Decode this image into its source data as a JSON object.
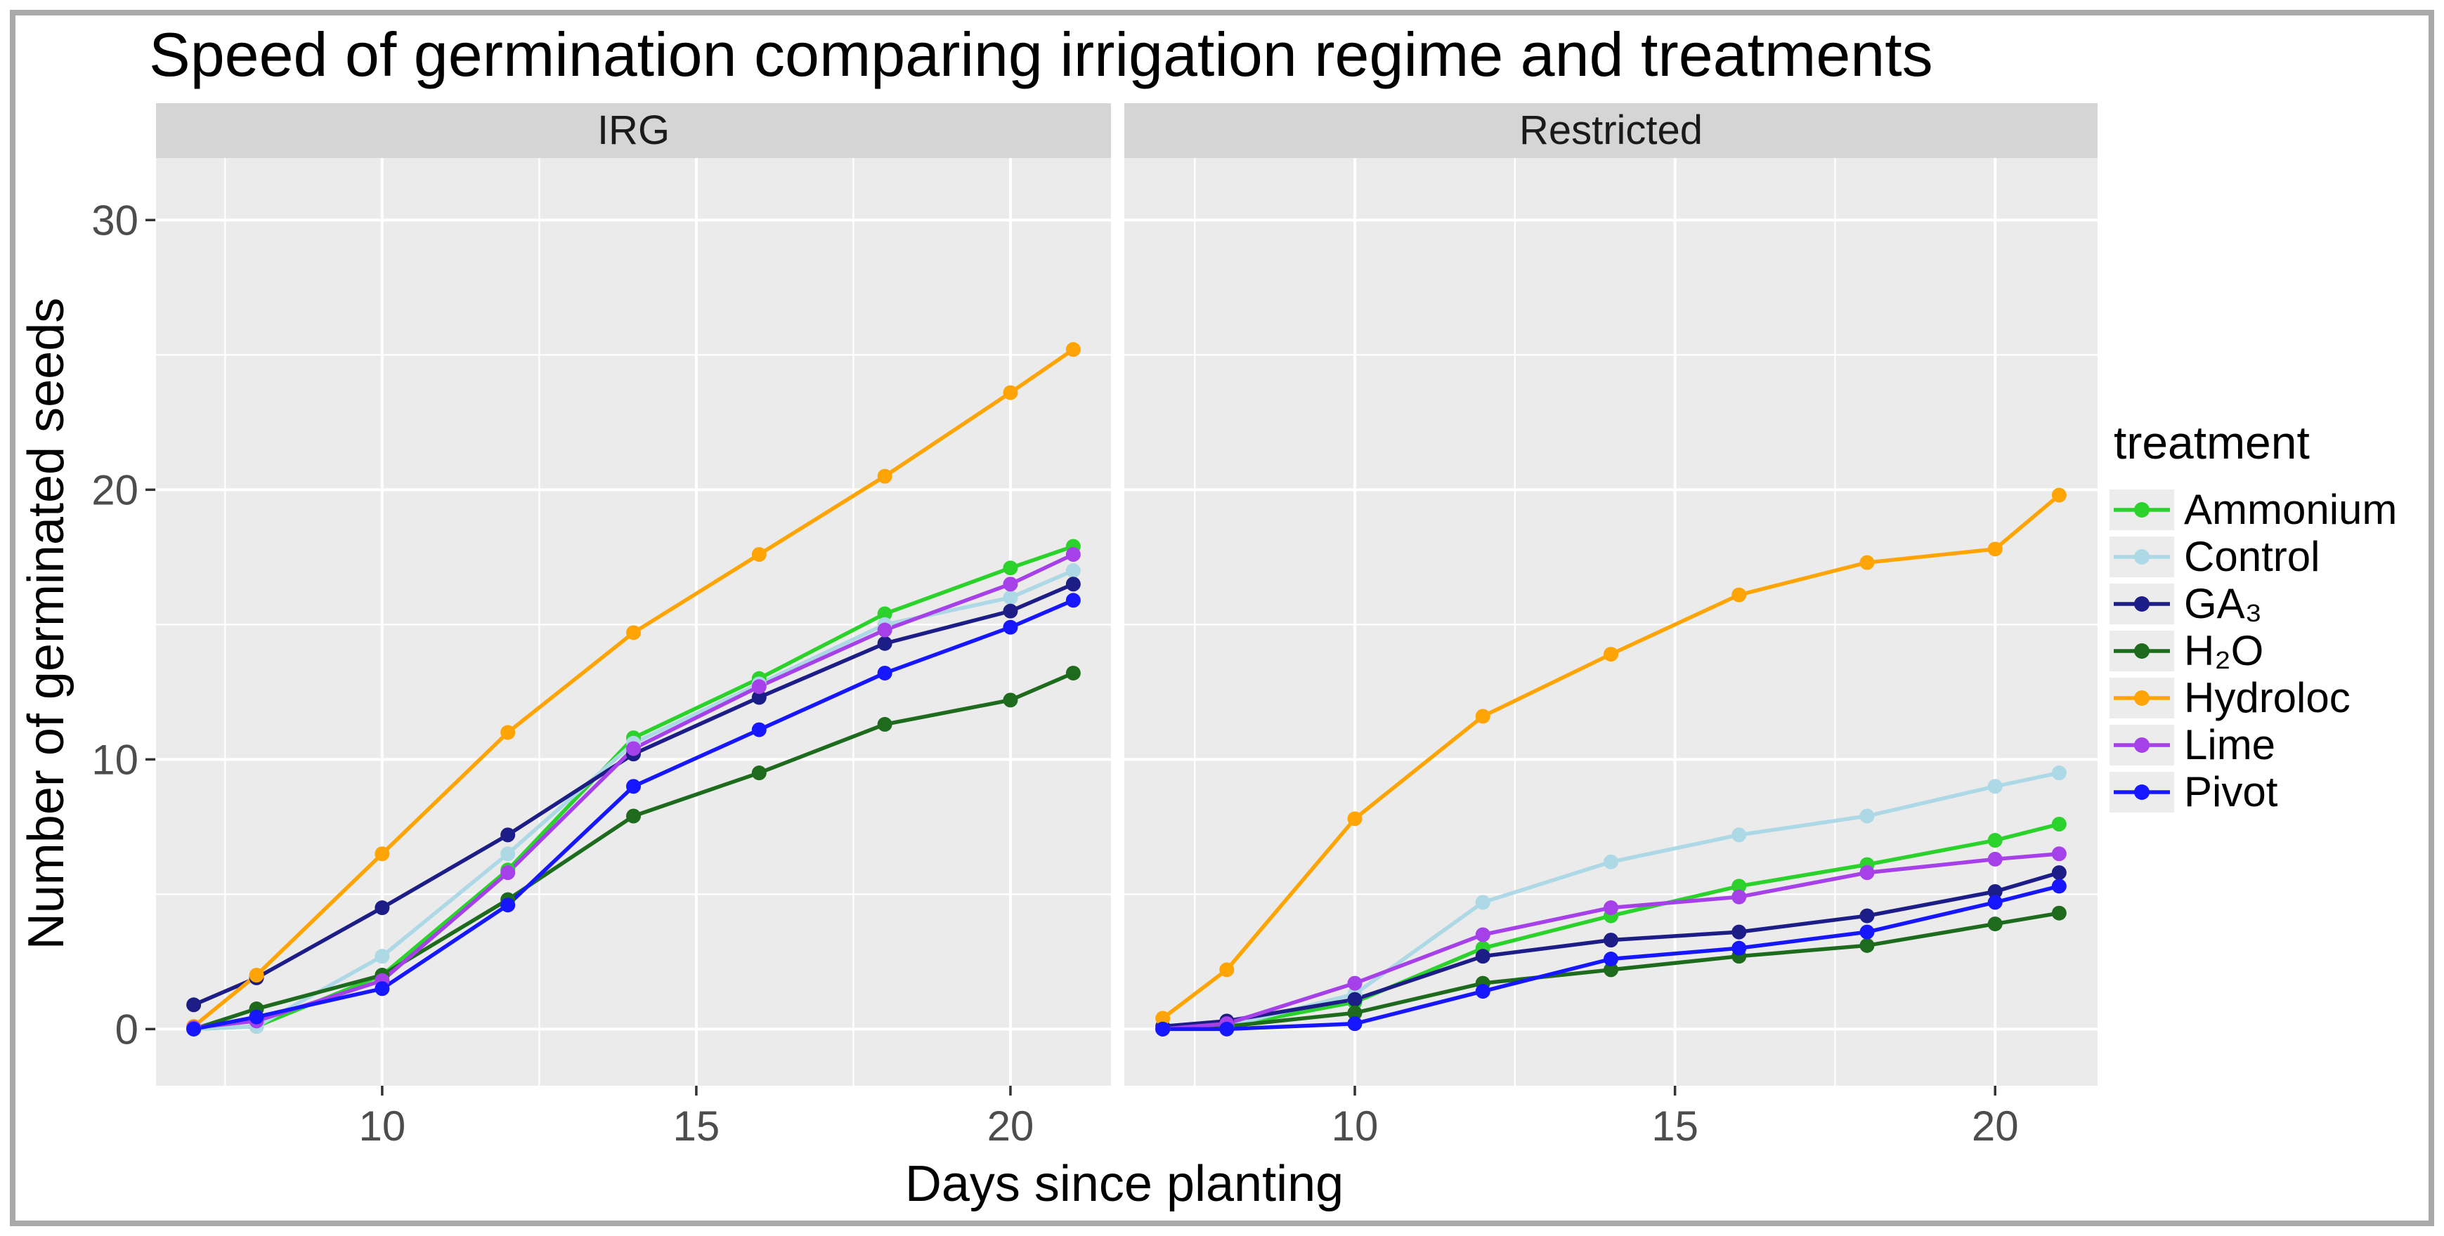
{
  "window": {
    "frame_color": "#a9a9a9"
  },
  "colors": {
    "panel_bg": "#ebebeb",
    "strip_bg": "#d5d5d5",
    "grid": "#ffffff",
    "tick_label": "#4d4d4d",
    "tick_mark": "#333333",
    "strip_text": "#1a1a1a",
    "key_bg": "#ececec"
  },
  "chart_data": {
    "type": "line",
    "title": "Speed of germination comparing irrigation regime and treatments",
    "xlabel": "Days since planting",
    "ylabel": "Number of germinated seeds",
    "legend_title": "treatment",
    "legend_position": "right",
    "grid": true,
    "facet_labels": [
      "IRG",
      "Restricted"
    ],
    "x": [
      7,
      8,
      10,
      12,
      14,
      16,
      18,
      20,
      21
    ],
    "x_ticks": [
      10,
      15,
      20
    ],
    "x_minor": [
      7.5,
      12.5,
      17.5
    ],
    "y_ticks": [
      0,
      10,
      20,
      30
    ],
    "y_minor": [
      5,
      15,
      25
    ],
    "xlim": [
      6.4,
      21.6
    ],
    "ylim": [
      -2.1,
      32.3
    ],
    "legend": [
      {
        "label": "Ammonium",
        "color": "#2bd22b"
      },
      {
        "label": "Control",
        "color": "#add8e6"
      },
      {
        "label": "GA₃",
        "color": "#1d1d87"
      },
      {
        "label": "H₂O",
        "color": "#1e6b1e"
      },
      {
        "label": "Hydroloc",
        "color": "#ffa405"
      },
      {
        "label": "Lime",
        "color": "#a640e8"
      },
      {
        "label": "Pivot",
        "color": "#1717ff"
      }
    ],
    "panels": [
      {
        "facet": "IRG",
        "series": [
          {
            "name": "Ammonium",
            "color": "#2bd22b",
            "values": [
              0,
              0.1,
              2.0,
              5.9,
              10.8,
              13.0,
              15.4,
              17.1,
              17.9
            ]
          },
          {
            "name": "Control",
            "color": "#add8e6",
            "values": [
              0,
              0.1,
              2.7,
              6.5,
              10.6,
              12.8,
              15.0,
              16.0,
              17.0
            ]
          },
          {
            "name": "GA3",
            "color": "#1d1d87",
            "values": [
              0.9,
              1.9,
              4.5,
              7.2,
              10.2,
              12.3,
              14.3,
              15.5,
              16.5
            ]
          },
          {
            "name": "H2O",
            "color": "#1e6b1e",
            "values": [
              0,
              0.75,
              2.0,
              4.8,
              7.9,
              9.5,
              11.3,
              12.2,
              13.2
            ]
          },
          {
            "name": "Hydroloc",
            "color": "#ffa405",
            "values": [
              0.1,
              2.0,
              6.5,
              11.0,
              14.7,
              17.6,
              20.5,
              23.6,
              25.2
            ]
          },
          {
            "name": "Lime",
            "color": "#a640e8",
            "values": [
              0.05,
              0.3,
              1.8,
              5.8,
              10.4,
              12.7,
              14.8,
              16.5,
              17.6
            ]
          },
          {
            "name": "Pivot",
            "color": "#1717ff",
            "values": [
              0,
              0.45,
              1.5,
              4.6,
              9.0,
              11.1,
              13.2,
              14.9,
              15.9
            ]
          }
        ]
      },
      {
        "facet": "Restricted",
        "series": [
          {
            "name": "Ammonium",
            "color": "#2bd22b",
            "values": [
              0,
              0.1,
              1.0,
              3.0,
              4.2,
              5.3,
              6.1,
              7.0,
              7.6
            ]
          },
          {
            "name": "Control",
            "color": "#add8e6",
            "values": [
              0,
              0.1,
              1.3,
              4.7,
              6.2,
              7.2,
              7.9,
              9.0,
              9.5
            ]
          },
          {
            "name": "GA3",
            "color": "#1d1d87",
            "values": [
              0.1,
              0.3,
              1.1,
              2.7,
              3.3,
              3.6,
              4.2,
              5.1,
              5.8
            ]
          },
          {
            "name": "H2O",
            "color": "#1e6b1e",
            "values": [
              0,
              0.1,
              0.6,
              1.7,
              2.2,
              2.7,
              3.1,
              3.9,
              4.3
            ]
          },
          {
            "name": "Hydroloc",
            "color": "#ffa405",
            "values": [
              0.4,
              2.2,
              7.8,
              11.6,
              13.9,
              16.1,
              17.3,
              17.8,
              19.8
            ]
          },
          {
            "name": "Lime",
            "color": "#a640e8",
            "values": [
              0,
              0.2,
              1.7,
              3.5,
              4.5,
              4.9,
              5.8,
              6.3,
              6.5
            ]
          },
          {
            "name": "Pivot",
            "color": "#1717ff",
            "values": [
              0,
              0,
              0.2,
              1.4,
              2.6,
              3.0,
              3.6,
              4.7,
              5.3
            ]
          }
        ]
      }
    ]
  }
}
